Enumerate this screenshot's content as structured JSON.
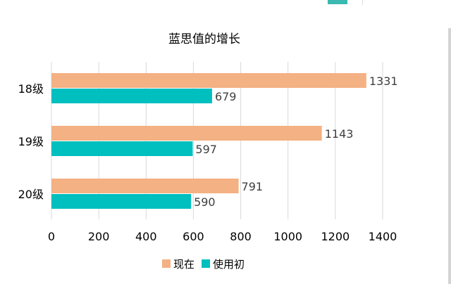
{
  "chart_data": {
    "type": "bar",
    "orientation": "horizontal",
    "title": "蓝思值的增长",
    "categories": [
      "18级",
      "19级",
      "20级"
    ],
    "series": [
      {
        "name": "现在",
        "color": "#f4b183",
        "values": [
          1331,
          1143,
          791
        ]
      },
      {
        "name": "使用初",
        "color": "#00bfbf",
        "values": [
          679,
          597,
          590
        ]
      }
    ],
    "xlim": [
      0,
      1400
    ],
    "xticks": [
      0,
      200,
      400,
      600,
      800,
      1000,
      1200,
      1400
    ],
    "grid": true,
    "data_labels": true,
    "legend": "bottom-center"
  },
  "colors": {
    "top_swatch": "#3bb8b0",
    "gridline": "#d9d9d9",
    "text": "#000000",
    "label_text": "#404040"
  }
}
